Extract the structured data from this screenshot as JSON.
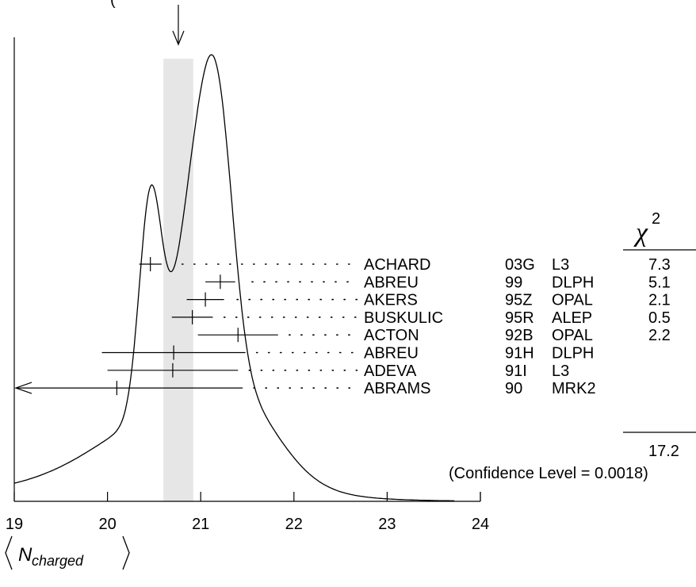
{
  "chart_data": {
    "type": "ideogram",
    "title_partial": "(",
    "xlabel": "⟨N_charged⟩",
    "xlabel_parts": {
      "symbol": "N",
      "subscript": "charged"
    },
    "xlim": [
      19,
      24
    ],
    "xticks": [
      19,
      20,
      21,
      22,
      23,
      24
    ],
    "average_band": {
      "center": 20.76,
      "low": 20.6,
      "high": 20.92
    },
    "arrow_at": 20.76,
    "chi2_header": "χ",
    "chi2_header_sup": "2",
    "measurements": [
      {
        "name": "ACHARD",
        "ref": "03G",
        "experiment": "L3",
        "value": 20.46,
        "error": 0.12,
        "chi2": "7.3"
      },
      {
        "name": "ABREU",
        "ref": "99",
        "experiment": "DLPH",
        "value": 21.21,
        "error": 0.16,
        "chi2": "5.1"
      },
      {
        "name": "AKERS",
        "ref": "95Z",
        "experiment": "OPAL",
        "value": 21.05,
        "error": 0.2,
        "chi2": "2.1"
      },
      {
        "name": "BUSKULIC",
        "ref": "95R",
        "experiment": "ALEP",
        "value": 20.91,
        "error": 0.22,
        "chi2": "0.5"
      },
      {
        "name": "ACTON",
        "ref": "92B",
        "experiment": "OPAL",
        "value": 21.4,
        "error": 0.43,
        "chi2": "2.2"
      },
      {
        "name": "ABREU",
        "ref": "91H",
        "experiment": "DLPH",
        "value": 20.71,
        "error": 0.77,
        "chi2": ""
      },
      {
        "name": "ADEVA",
        "ref": "91I",
        "experiment": "L3",
        "value": 20.7,
        "error": 0.7,
        "chi2": ""
      },
      {
        "name": "ABRAMS",
        "ref": "90",
        "experiment": "MRK2",
        "value": 20.1,
        "error": 1.35,
        "chi2": "",
        "left_arrow": true
      }
    ],
    "chi2_total": "17.2",
    "confidence_level": "(Confidence Level = 0.0018)",
    "grid": false
  }
}
